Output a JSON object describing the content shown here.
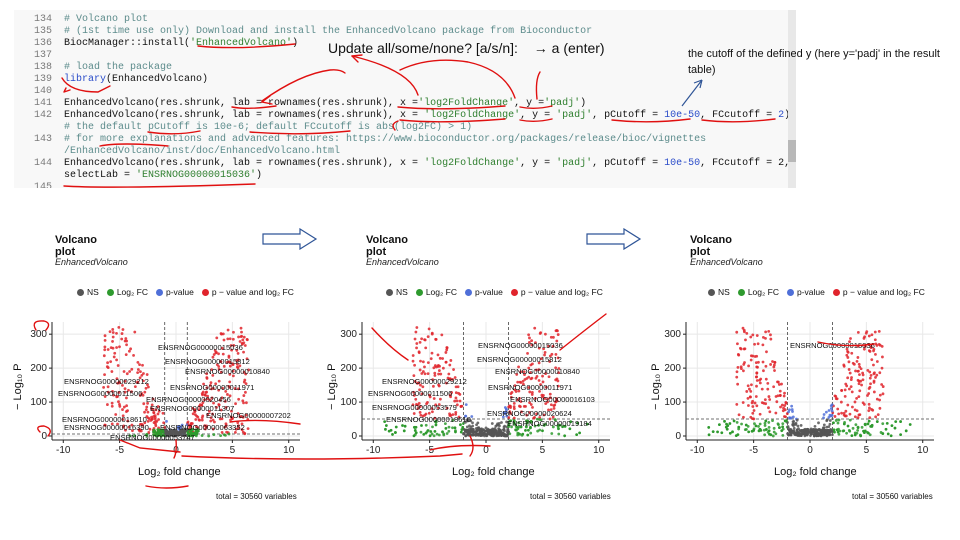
{
  "code": {
    "lines": [
      {
        "num": "134",
        "parts": [
          {
            "t": "# Volcano plot",
            "c": "comment"
          }
        ]
      },
      {
        "num": "135",
        "parts": [
          {
            "t": "# (1st time use only) Download and install the EnhancedVolcano package from Bioconductor",
            "c": "comment"
          }
        ]
      },
      {
        "num": "136",
        "parts": [
          {
            "t": "BiocManager::install(",
            "c": "code"
          },
          {
            "t": "'EnhancedVolcano'",
            "c": "string"
          },
          {
            "t": ")",
            "c": "code"
          }
        ]
      },
      {
        "num": "137",
        "parts": []
      },
      {
        "num": "138",
        "parts": [
          {
            "t": "# load the package",
            "c": "comment"
          }
        ]
      },
      {
        "num": "139",
        "parts": [
          {
            "t": "library",
            "c": "num"
          },
          {
            "t": "(EnhancedVolcano)",
            "c": "code"
          }
        ]
      },
      {
        "num": "140",
        "parts": []
      },
      {
        "num": "141",
        "parts": [
          {
            "t": "EnhancedVolcano(res.shrunk, lab = rownames(res.shrunk), x =",
            "c": "code"
          },
          {
            "t": "'log2FoldChange'",
            "c": "string"
          },
          {
            "t": ", y =",
            "c": "code"
          },
          {
            "t": "'padj'",
            "c": "string"
          },
          {
            "t": ")",
            "c": "code"
          }
        ]
      },
      {
        "num": "142",
        "parts": [
          {
            "t": "EnhancedVolcano(res.shrunk, lab = rownames(res.shrunk), x = ",
            "c": "code"
          },
          {
            "t": "'log2FoldChange'",
            "c": "string"
          },
          {
            "t": ", y = ",
            "c": "code"
          },
          {
            "t": "'padj'",
            "c": "string"
          },
          {
            "t": ", pCutoff = ",
            "c": "code"
          },
          {
            "t": "10e-50",
            "c": "num"
          },
          {
            "t": ", FCcutoff = ",
            "c": "code"
          },
          {
            "t": "2",
            "c": "num"
          },
          {
            "t": ")",
            "c": "code"
          }
        ]
      },
      {
        "num": "",
        "parts": [
          {
            "t": "# the default pCutoff is 10e-6; default FCcutoff is abs(log2FC) > 1)",
            "c": "comment"
          }
        ]
      },
      {
        "num": "143",
        "parts": [
          {
            "t": "# for more explanations and advanced features: https://www.bioconductor.org/packages/release/bioc/vignettes",
            "c": "comment"
          }
        ]
      },
      {
        "num": "",
        "parts": [
          {
            "t": "/EnhancedVolcano/inst/doc/EnhancedVolcano.html",
            "c": "comment"
          }
        ]
      },
      {
        "num": "144",
        "parts": [
          {
            "t": "EnhancedVolcano(res.shrunk, lab = rownames(res.shrunk), x = ",
            "c": "code"
          },
          {
            "t": "'log2FoldChange'",
            "c": "string"
          },
          {
            "t": ", y = ",
            "c": "code"
          },
          {
            "t": "'padj'",
            "c": "string"
          },
          {
            "t": ", pCutoff = ",
            "c": "code"
          },
          {
            "t": "10e-50",
            "c": "num"
          },
          {
            "t": ", FCcutoff = 2,",
            "c": "code"
          }
        ]
      },
      {
        "num": "",
        "parts": [
          {
            "t": "selectLab = ",
            "c": "code"
          },
          {
            "t": "'ENSRNOG00000015036'",
            "c": "string"
          },
          {
            "t": ")",
            "c": "code"
          }
        ]
      },
      {
        "num": "145",
        "parts": []
      }
    ]
  },
  "annotations": {
    "update_prompt": "Update all/some/none? [a/s/n]:",
    "update_answer": "→  a (enter)",
    "cutoff_note": "the cutoff of the defined  y (here y='padj' in the result table)"
  },
  "plot_common": {
    "title": "Volcano plot",
    "subtitle": "EnhancedVolcano",
    "legend_ns": "NS",
    "legend_fc": "Log₂ FC",
    "legend_p": "p-value",
    "legend_pfc": "p − value and log₂ FC",
    "xlabel": "Log₂ fold change",
    "ylabel": "− Log₁₀ P",
    "total": "total = 30560 variables",
    "xticks": [
      "-10",
      "-5",
      "0",
      "5",
      "10"
    ],
    "yticks": [
      "0",
      "100",
      "200",
      "300"
    ]
  },
  "plots": [
    {
      "labels": [
        "ENSRNOG00000015036",
        "ENSRNOG00000015812",
        "ENSRNOG00000010840",
        "ENSRNOG00000029212",
        "ENSRNOG00000011971",
        "ENSRNOG00000011506",
        "ENSRNOG00000020456",
        "ENSRNOG00000011307",
        "ENSRNOG00000007202",
        "ENSRNOG00000018610",
        "ENSRNOG00000063352",
        "ENSRNOG00000016390",
        "ENSRNOG00000053747"
      ]
    },
    {
      "labels": [
        "ENSRNOG00000015036",
        "ENSRNOG00000015812",
        "ENSRNOG00000010840",
        "ENSRNOG00000029212",
        "ENSRNOG00000011971",
        "ENSRNOG00000011506",
        "ENSRNOG00000016103",
        "ENSRNOG00000053579",
        "ENSRNOG00000020624",
        "ENSRNOG00000018610",
        "ENSRNOG00000019184"
      ]
    },
    {
      "labels": [
        "ENSRNOG00000015036"
      ]
    }
  ],
  "colors": {
    "ns": "#555555",
    "fc": "#2e9a2e",
    "p": "#4f6fd8",
    "pfc": "#e0242c",
    "ink": "#e01010",
    "arrow": "#2f5597"
  }
}
